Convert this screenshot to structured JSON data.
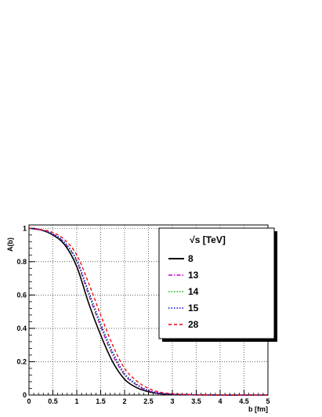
{
  "chart_data": {
    "type": "line",
    "xlabel": "b [fm]",
    "ylabel": "A(b)",
    "xlim": [
      0,
      5
    ],
    "ylim": [
      0,
      1.02
    ],
    "grid": true,
    "legend_position": "top-right",
    "legend_title": "√s [TeV]",
    "x_ticks": [
      "0",
      "0.5",
      "1",
      "1.5",
      "2",
      "2.5",
      "3",
      "3.5",
      "4",
      "4.5",
      "5"
    ],
    "y_ticks": [
      "0",
      "0.2",
      "0.4",
      "0.6",
      "0.8",
      "1"
    ],
    "x": [
      0,
      0.25,
      0.5,
      0.75,
      1.0,
      1.25,
      1.5,
      1.75,
      2.0,
      2.25,
      2.5,
      2.75,
      3.0,
      3.25,
      3.5,
      4.0,
      4.5,
      5.0
    ],
    "series": [
      {
        "name": "8",
        "color": "#000000",
        "dash": "solid",
        "values": [
          1.0,
          0.99,
          0.96,
          0.9,
          0.77,
          0.55,
          0.36,
          0.2,
          0.095,
          0.045,
          0.02,
          0.008,
          0.004,
          0.002,
          0.001,
          0.0,
          0.0,
          0.0
        ]
      },
      {
        "name": "13",
        "color": "#cc00cc",
        "dash": "dashdot",
        "values": [
          1.0,
          0.99,
          0.965,
          0.91,
          0.8,
          0.6,
          0.41,
          0.24,
          0.12,
          0.06,
          0.025,
          0.01,
          0.005,
          0.003,
          0.001,
          0.0,
          0.0,
          0.0
        ]
      },
      {
        "name": "14",
        "color": "#00bb00",
        "dash": "dotted",
        "values": [
          1.0,
          0.99,
          0.966,
          0.91,
          0.805,
          0.61,
          0.42,
          0.25,
          0.125,
          0.063,
          0.027,
          0.011,
          0.005,
          0.003,
          0.001,
          0.0,
          0.0,
          0.0
        ]
      },
      {
        "name": "15",
        "color": "#0000ee",
        "dash": "dotted",
        "values": [
          1.0,
          0.99,
          0.967,
          0.915,
          0.81,
          0.62,
          0.43,
          0.26,
          0.13,
          0.066,
          0.028,
          0.012,
          0.006,
          0.003,
          0.001,
          0.0,
          0.0,
          0.0
        ]
      },
      {
        "name": "28",
        "color": "#ee0000",
        "dash": "dashed",
        "values": [
          1.0,
          0.992,
          0.975,
          0.93,
          0.84,
          0.67,
          0.48,
          0.3,
          0.16,
          0.085,
          0.04,
          0.017,
          0.008,
          0.004,
          0.002,
          0.0,
          0.0,
          0.0
        ]
      }
    ]
  }
}
